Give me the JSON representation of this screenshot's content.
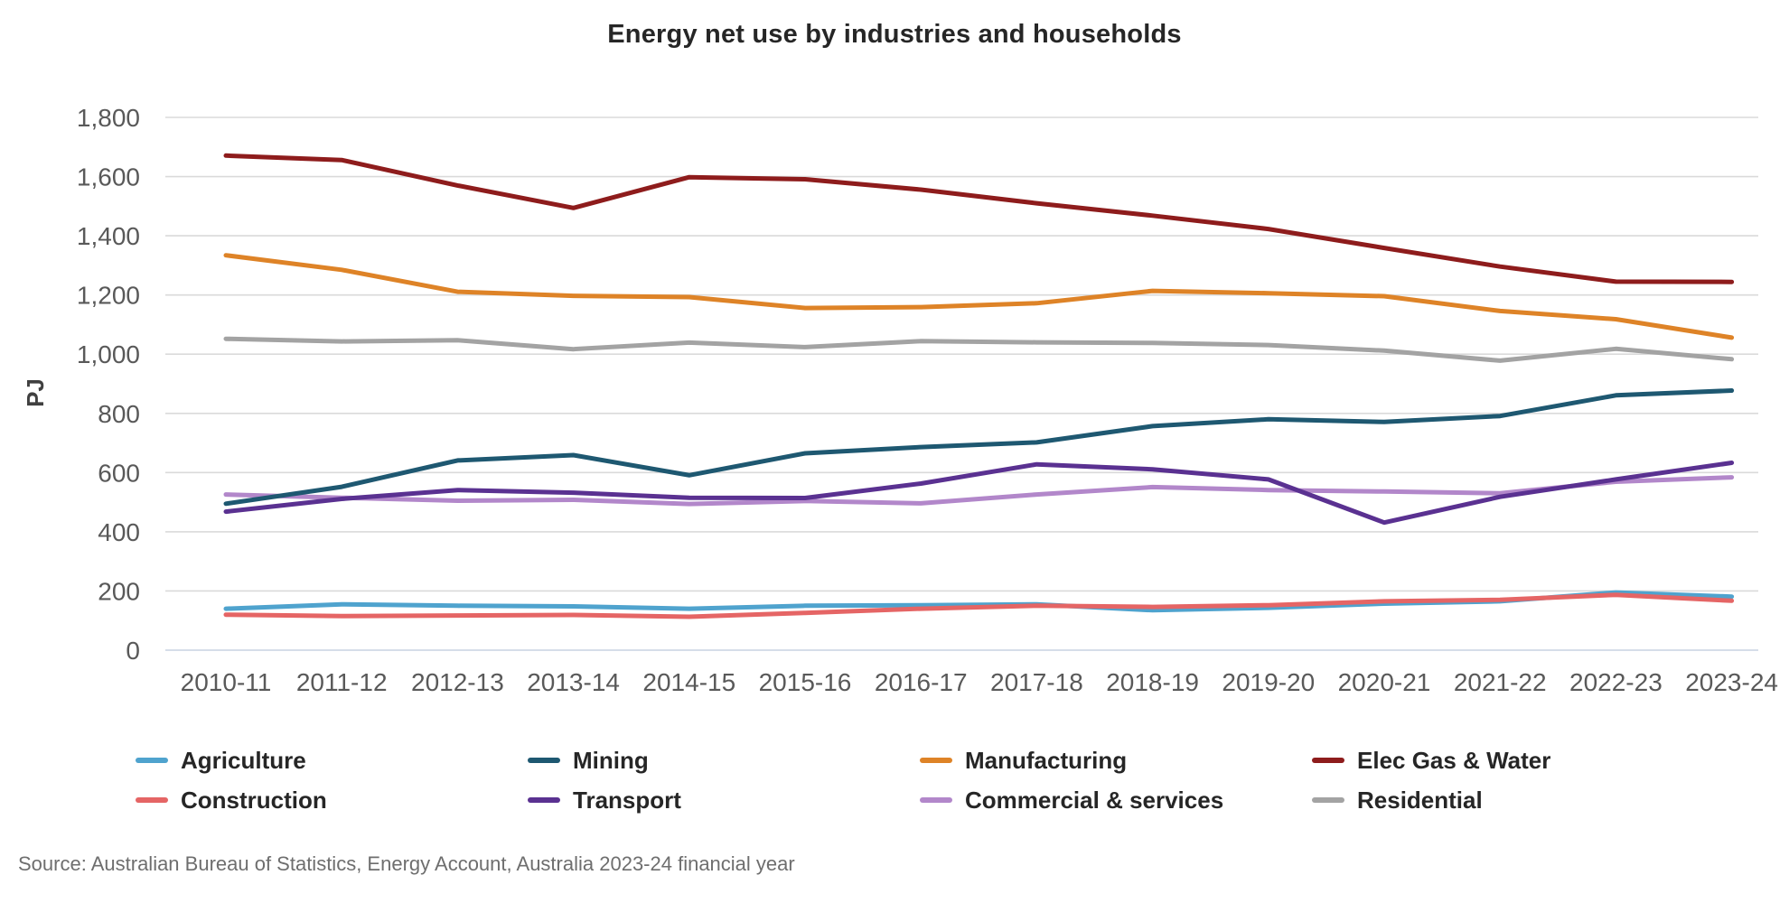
{
  "source_note": "Source: Australian Bureau of Statistics, Energy Account, Australia 2023-24 financial year",
  "style": {
    "background": "#ffffff",
    "grid_color": "#dadada",
    "zero_line_color": "#c8d2e2",
    "tick_color": "#595959",
    "title_color": "#262626",
    "legend_text_color": "#262626",
    "source_color": "#6e6e6e"
  },
  "chart_data": {
    "type": "line",
    "title": "Energy net use by industries and households",
    "xlabel": "",
    "ylabel": "PJ",
    "ylim": [
      0,
      1800
    ],
    "ytick_step": 200,
    "y_tick_labels": [
      "0",
      "200",
      "400",
      "600",
      "800",
      "1,000",
      "1,200",
      "1,400",
      "1,600",
      "1,800"
    ],
    "grid": "horizontal",
    "legend_position": "bottom",
    "categories": [
      "2010-11",
      "2011-12",
      "2012-13",
      "2013-14",
      "2014-15",
      "2015-16",
      "2016-17",
      "2017-18",
      "2018-19",
      "2019-20",
      "2020-21",
      "2021-22",
      "2022-23",
      "2023-24"
    ],
    "series": [
      {
        "name": "Agriculture",
        "color": "#4fa3ce",
        "values": [
          140,
          155,
          150,
          148,
          140,
          150,
          152,
          155,
          135,
          143,
          157,
          165,
          195,
          181
        ]
      },
      {
        "name": "Mining",
        "color": "#1e5871",
        "values": [
          495,
          552,
          641,
          659,
          591,
          665,
          686,
          702,
          757,
          780,
          771,
          791,
          861,
          877
        ]
      },
      {
        "name": "Manufacturing",
        "color": "#de8327",
        "values": [
          1334,
          1285,
          1211,
          1197,
          1193,
          1156,
          1159,
          1172,
          1214,
          1206,
          1196,
          1146,
          1118,
          1056
        ]
      },
      {
        "name": "Elec Gas & Water",
        "color": "#8e1c1c",
        "values": [
          1671,
          1656,
          1570,
          1494,
          1598,
          1591,
          1556,
          1510,
          1468,
          1423,
          1359,
          1296,
          1245,
          1244
        ]
      },
      {
        "name": "Construction",
        "color": "#e56565",
        "values": [
          120,
          115,
          117,
          119,
          113,
          126,
          140,
          150,
          146,
          152,
          165,
          170,
          187,
          167
        ]
      },
      {
        "name": "Transport",
        "color": "#5a3191",
        "values": [
          468,
          511,
          541,
          532,
          515,
          514,
          563,
          628,
          611,
          577,
          431,
          518,
          577,
          633
        ]
      },
      {
        "name": "Commercial & services",
        "color": "#b287ca",
        "values": [
          526,
          515,
          505,
          508,
          494,
          504,
          496,
          526,
          551,
          541,
          536,
          530,
          569,
          584
        ]
      },
      {
        "name": "Residential",
        "color": "#a3a3a3",
        "values": [
          1052,
          1043,
          1047,
          1017,
          1039,
          1024,
          1044,
          1040,
          1038,
          1031,
          1012,
          978,
          1018,
          983
        ]
      }
    ],
    "draw_order": [
      "Residential",
      "Elec Gas & Water",
      "Manufacturing",
      "Commercial & services",
      "Transport",
      "Mining",
      "Agriculture",
      "Construction"
    ]
  }
}
